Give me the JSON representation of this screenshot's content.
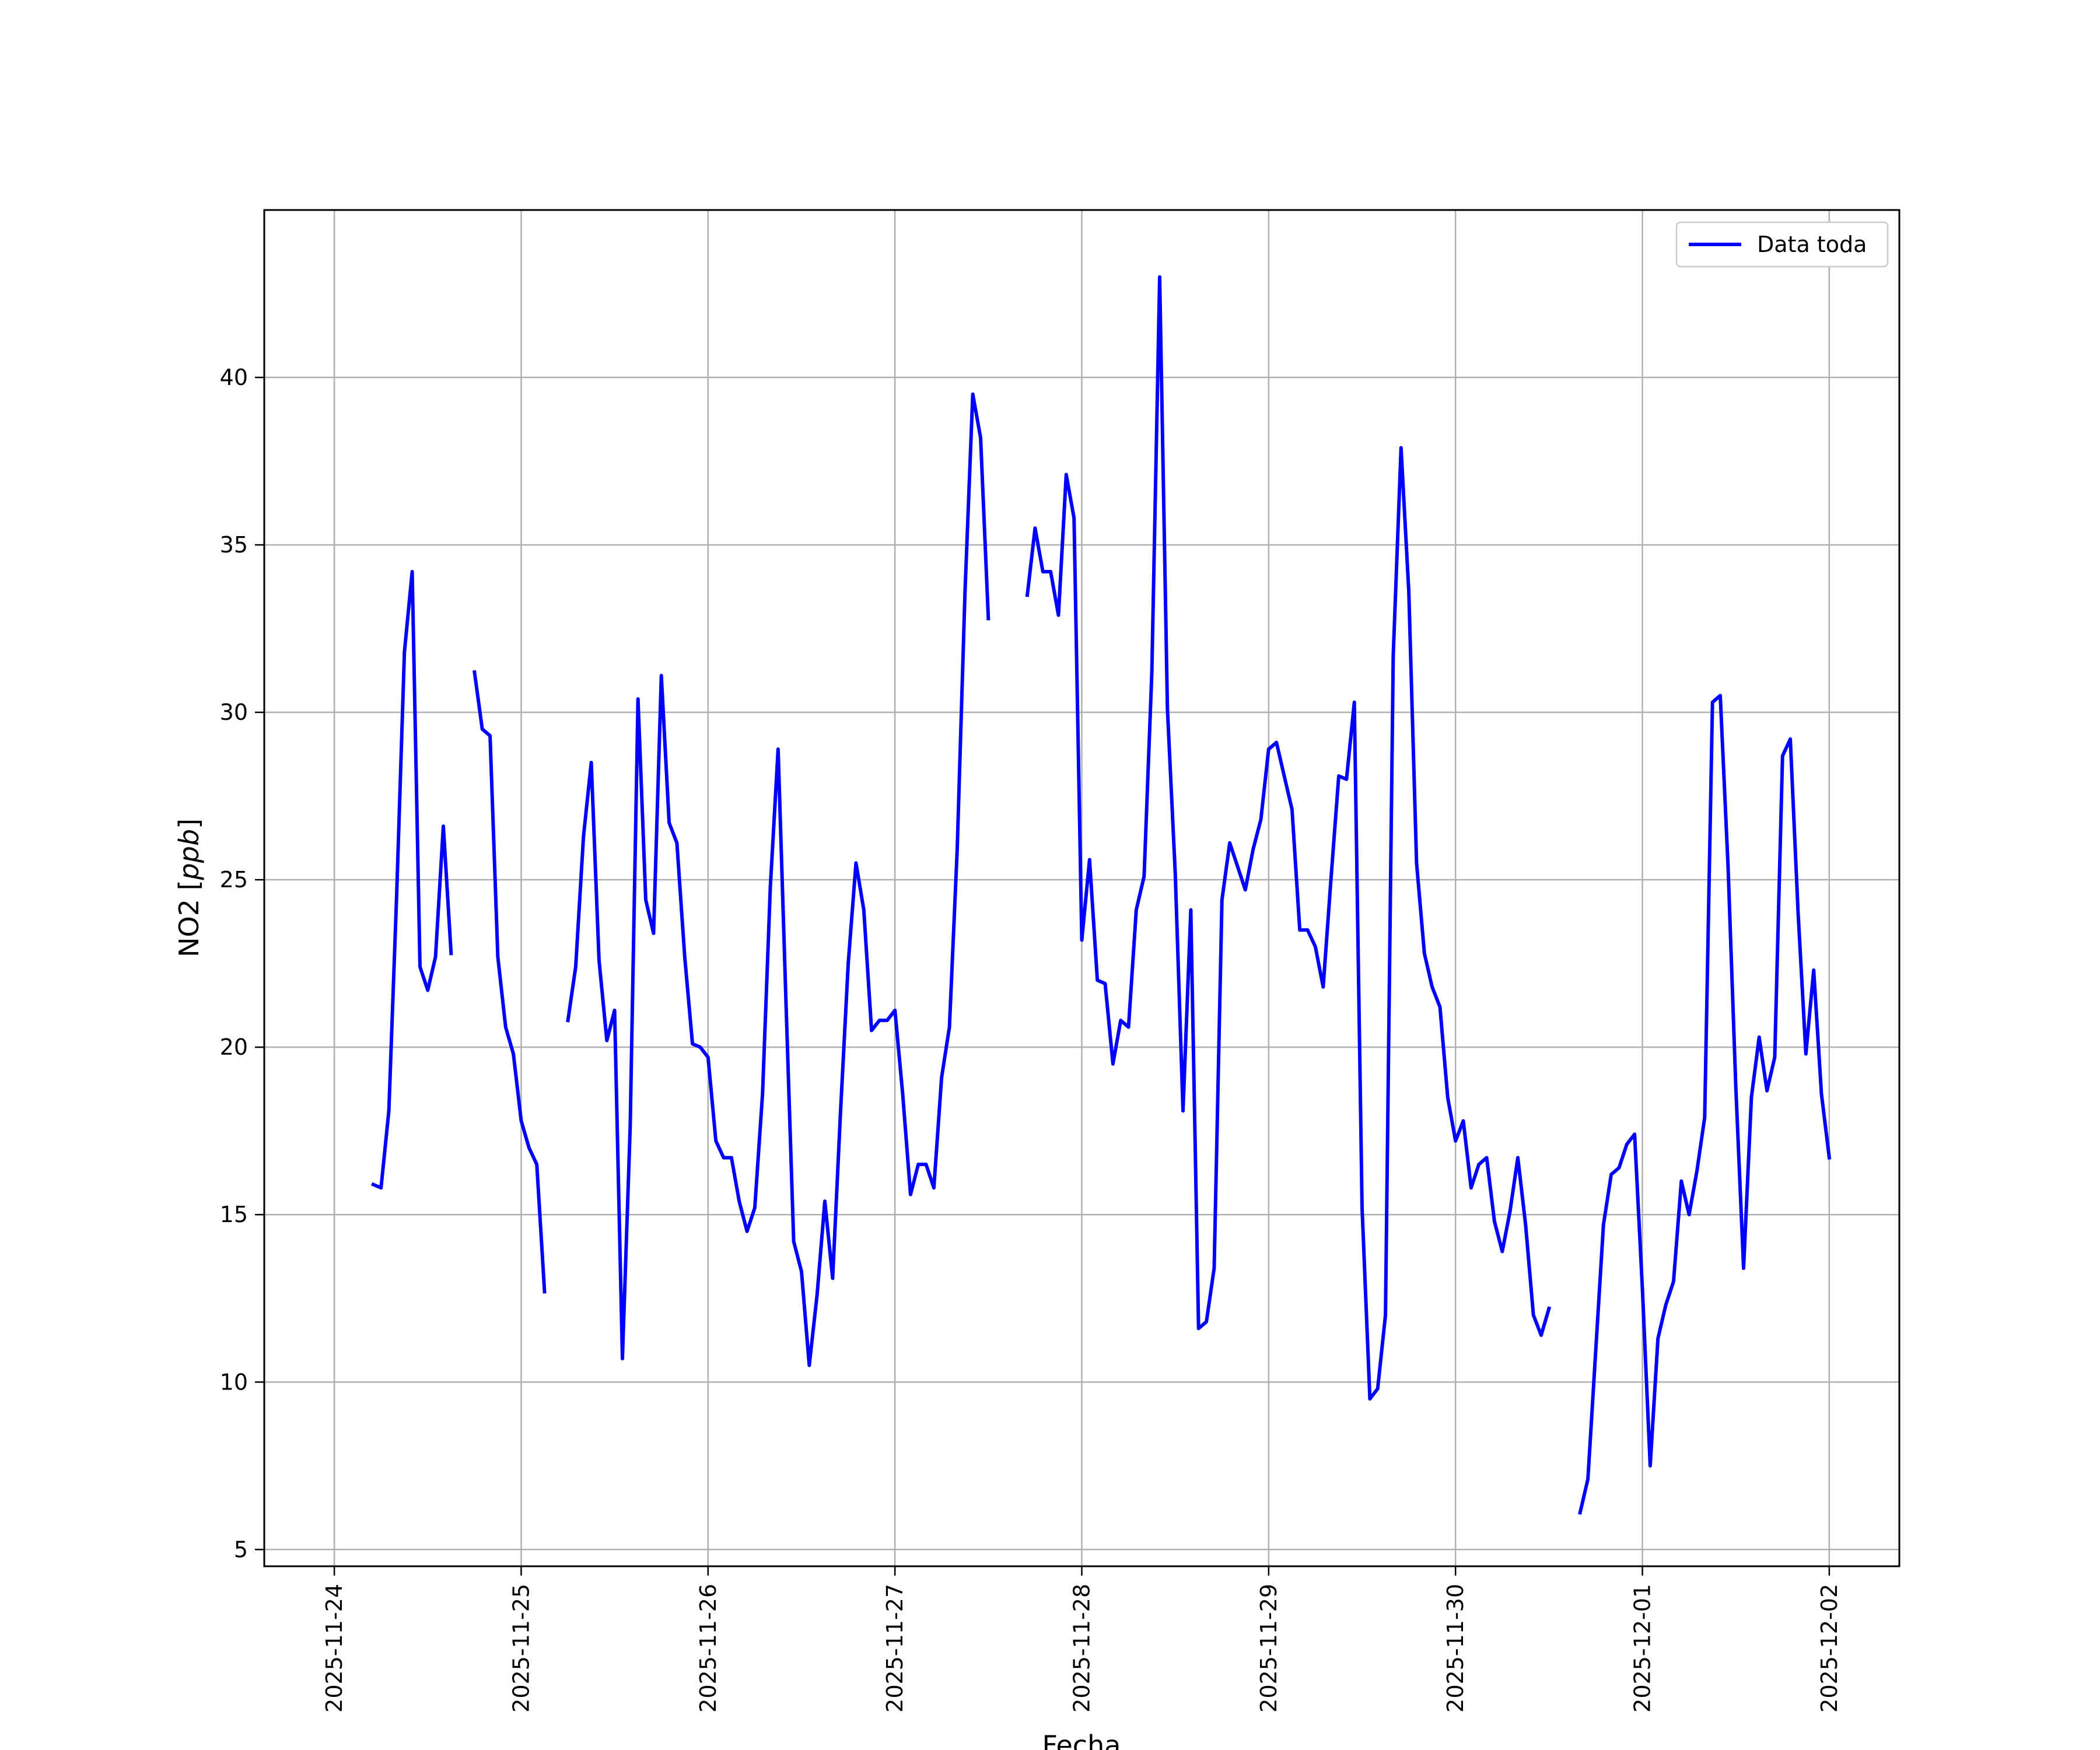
{
  "chart_data": {
    "type": "line",
    "title": "",
    "xlabel": "Fecha",
    "ylabel": "NO2 [ppb]",
    "ylabel_main": "NO2 [",
    "ylabel_unit": "ppb",
    "ylabel_close": "]",
    "x_axis": "datetime",
    "xlim": [
      "2025-11-23T15:00",
      "2025-12-02T09:00"
    ],
    "ylim": [
      4.5,
      45
    ],
    "x_ticks": [
      "2025-11-24",
      "2025-11-25",
      "2025-11-26",
      "2025-11-27",
      "2025-11-28",
      "2025-11-29",
      "2025-11-30",
      "2025-12-01",
      "2025-12-02"
    ],
    "y_ticks": [
      5,
      10,
      15,
      20,
      25,
      30,
      35,
      40
    ],
    "grid": true,
    "legend_position": "top-right",
    "colors": {
      "series": "#0000ff",
      "grid": "#b0b0b0",
      "axes": "#000000"
    },
    "series": [
      {
        "name": "Data toda",
        "segments": [
          [
            [
              "2025-11-24T05:00",
              15.9
            ],
            [
              "2025-11-24T06:00",
              15.8
            ],
            [
              "2025-11-24T07:00",
              18.1
            ],
            [
              "2025-11-24T08:00",
              24.5
            ],
            [
              "2025-11-24T09:00",
              31.8
            ],
            [
              "2025-11-24T10:00",
              34.2
            ],
            [
              "2025-11-24T11:00",
              22.4
            ],
            [
              "2025-11-24T12:00",
              21.7
            ],
            [
              "2025-11-24T13:00",
              22.7
            ],
            [
              "2025-11-24T14:00",
              26.6
            ],
            [
              "2025-11-24T15:00",
              22.8
            ]
          ],
          [
            [
              "2025-11-24T18:00",
              31.2
            ],
            [
              "2025-11-24T19:00",
              29.5
            ],
            [
              "2025-11-24T20:00",
              29.3
            ],
            [
              "2025-11-24T21:00",
              22.7
            ],
            [
              "2025-11-24T22:00",
              20.6
            ],
            [
              "2025-11-24T23:00",
              19.8
            ],
            [
              "2025-11-25T00:00",
              17.8
            ],
            [
              "2025-11-25T01:00",
              17.0
            ],
            [
              "2025-11-25T02:00",
              16.5
            ],
            [
              "2025-11-25T03:00",
              12.7
            ]
          ],
          [
            [
              "2025-11-25T06:00",
              20.8
            ],
            [
              "2025-11-25T07:00",
              22.4
            ],
            [
              "2025-11-25T08:00",
              26.3
            ],
            [
              "2025-11-25T09:00",
              28.5
            ],
            [
              "2025-11-25T10:00",
              22.6
            ],
            [
              "2025-11-25T11:00",
              20.2
            ],
            [
              "2025-11-25T12:00",
              21.1
            ],
            [
              "2025-11-25T13:00",
              10.7
            ],
            [
              "2025-11-25T14:00",
              17.6
            ],
            [
              "2025-11-25T15:00",
              30.4
            ],
            [
              "2025-11-25T16:00",
              24.4
            ],
            [
              "2025-11-25T17:00",
              23.4
            ],
            [
              "2025-11-25T18:00",
              31.1
            ],
            [
              "2025-11-25T19:00",
              26.7
            ],
            [
              "2025-11-25T20:00",
              26.1
            ],
            [
              "2025-11-25T21:00",
              22.7
            ],
            [
              "2025-11-25T22:00",
              20.1
            ],
            [
              "2025-11-25T23:00",
              20.0
            ],
            [
              "2025-11-26T00:00",
              19.7
            ],
            [
              "2025-11-26T01:00",
              17.2
            ],
            [
              "2025-11-26T02:00",
              16.7
            ],
            [
              "2025-11-26T03:00",
              16.7
            ],
            [
              "2025-11-26T04:00",
              15.4
            ],
            [
              "2025-11-26T05:00",
              14.5
            ],
            [
              "2025-11-26T06:00",
              15.2
            ],
            [
              "2025-11-26T07:00",
              18.6
            ],
            [
              "2025-11-26T08:00",
              24.8
            ],
            [
              "2025-11-26T09:00",
              28.9
            ],
            [
              "2025-11-26T10:00",
              21.4
            ],
            [
              "2025-11-26T11:00",
              14.2
            ],
            [
              "2025-11-26T12:00",
              13.3
            ],
            [
              "2025-11-26T13:00",
              10.5
            ],
            [
              "2025-11-26T14:00",
              12.6
            ],
            [
              "2025-11-26T15:00",
              15.4
            ],
            [
              "2025-11-26T16:00",
              13.1
            ],
            [
              "2025-11-26T17:00",
              18.0
            ],
            [
              "2025-11-26T18:00",
              22.5
            ],
            [
              "2025-11-26T19:00",
              25.5
            ],
            [
              "2025-11-26T20:00",
              24.1
            ],
            [
              "2025-11-26T21:00",
              20.5
            ],
            [
              "2025-11-26T22:00",
              20.8
            ],
            [
              "2025-11-26T23:00",
              20.8
            ],
            [
              "2025-11-27T00:00",
              21.1
            ],
            [
              "2025-11-27T01:00",
              18.6
            ],
            [
              "2025-11-27T02:00",
              15.6
            ],
            [
              "2025-11-27T03:00",
              16.5
            ],
            [
              "2025-11-27T04:00",
              16.5
            ],
            [
              "2025-11-27T05:00",
              15.8
            ],
            [
              "2025-11-27T06:00",
              19.1
            ],
            [
              "2025-11-27T07:00",
              20.6
            ],
            [
              "2025-11-27T08:00",
              25.9
            ],
            [
              "2025-11-27T09:00",
              33.6
            ],
            [
              "2025-11-27T10:00",
              39.5
            ],
            [
              "2025-11-27T11:00",
              38.2
            ],
            [
              "2025-11-27T12:00",
              32.8
            ]
          ],
          [
            [
              "2025-11-27T17:00",
              33.5
            ],
            [
              "2025-11-27T18:00",
              35.5
            ],
            [
              "2025-11-27T19:00",
              34.2
            ],
            [
              "2025-11-27T20:00",
              34.2
            ],
            [
              "2025-11-27T21:00",
              32.9
            ],
            [
              "2025-11-27T22:00",
              37.1
            ],
            [
              "2025-11-27T23:00",
              35.8
            ],
            [
              "2025-11-28T00:00",
              23.2
            ],
            [
              "2025-11-28T01:00",
              25.6
            ],
            [
              "2025-11-28T02:00",
              22.0
            ],
            [
              "2025-11-28T03:00",
              21.9
            ],
            [
              "2025-11-28T04:00",
              19.5
            ],
            [
              "2025-11-28T05:00",
              20.8
            ],
            [
              "2025-11-28T06:00",
              20.6
            ],
            [
              "2025-11-28T07:00",
              24.1
            ],
            [
              "2025-11-28T08:00",
              25.1
            ],
            [
              "2025-11-28T09:00",
              31.2
            ],
            [
              "2025-11-28T10:00",
              43.0
            ],
            [
              "2025-11-28T11:00",
              30.1
            ],
            [
              "2025-11-28T12:00",
              25.2
            ],
            [
              "2025-11-28T13:00",
              18.1
            ],
            [
              "2025-11-28T14:00",
              24.1
            ],
            [
              "2025-11-28T15:00",
              11.6
            ],
            [
              "2025-11-28T16:00",
              11.8
            ],
            [
              "2025-11-28T17:00",
              13.4
            ],
            [
              "2025-11-28T18:00",
              24.4
            ],
            [
              "2025-11-28T19:00",
              26.1
            ],
            [
              "2025-11-28T20:00",
              25.4
            ],
            [
              "2025-11-28T21:00",
              24.7
            ],
            [
              "2025-11-28T22:00",
              25.9
            ],
            [
              "2025-11-28T23:00",
              26.8
            ],
            [
              "2025-11-29T00:00",
              28.9
            ],
            [
              "2025-11-29T01:00",
              29.1
            ],
            [
              "2025-11-29T02:00",
              28.1
            ],
            [
              "2025-11-29T03:00",
              27.1
            ],
            [
              "2025-11-29T04:00",
              23.5
            ],
            [
              "2025-11-29T05:00",
              23.5
            ],
            [
              "2025-11-29T06:00",
              23.0
            ],
            [
              "2025-11-29T07:00",
              21.8
            ],
            [
              "2025-11-29T08:00",
              25.0
            ],
            [
              "2025-11-29T09:00",
              28.1
            ],
            [
              "2025-11-29T10:00",
              28.0
            ],
            [
              "2025-11-29T11:00",
              30.3
            ],
            [
              "2025-11-29T12:00",
              15.2
            ],
            [
              "2025-11-29T13:00",
              9.5
            ],
            [
              "2025-11-29T14:00",
              9.8
            ],
            [
              "2025-11-29T15:00",
              12.0
            ],
            [
              "2025-11-29T16:00",
              31.7
            ],
            [
              "2025-11-29T17:00",
              37.9
            ],
            [
              "2025-11-29T18:00",
              33.6
            ],
            [
              "2025-11-29T19:00",
              25.5
            ],
            [
              "2025-11-29T20:00",
              22.8
            ],
            [
              "2025-11-29T21:00",
              21.8
            ],
            [
              "2025-11-29T22:00",
              21.2
            ],
            [
              "2025-11-29T23:00",
              18.5
            ],
            [
              "2025-11-30T00:00",
              17.2
            ],
            [
              "2025-11-30T01:00",
              17.8
            ],
            [
              "2025-11-30T02:00",
              15.8
            ],
            [
              "2025-11-30T03:00",
              16.5
            ],
            [
              "2025-11-30T04:00",
              16.7
            ],
            [
              "2025-11-30T05:00",
              14.8
            ],
            [
              "2025-11-30T06:00",
              13.9
            ],
            [
              "2025-11-30T07:00",
              15.1
            ],
            [
              "2025-11-30T08:00",
              16.7
            ],
            [
              "2025-11-30T09:00",
              14.7
            ],
            [
              "2025-11-30T10:00",
              12.0
            ],
            [
              "2025-11-30T11:00",
              11.4
            ],
            [
              "2025-11-30T12:00",
              12.2
            ]
          ],
          [
            [
              "2025-11-30T16:00",
              6.1
            ],
            [
              "2025-11-30T17:00",
              7.1
            ],
            [
              "2025-11-30T18:00",
              10.9
            ],
            [
              "2025-11-30T19:00",
              14.7
            ],
            [
              "2025-11-30T20:00",
              16.2
            ],
            [
              "2025-11-30T21:00",
              16.4
            ],
            [
              "2025-11-30T22:00",
              17.1
            ],
            [
              "2025-11-30T23:00",
              17.4
            ],
            [
              "2025-12-01T00:00",
              12.8
            ],
            [
              "2025-12-01T01:00",
              7.5
            ],
            [
              "2025-12-01T02:00",
              11.3
            ],
            [
              "2025-12-01T03:00",
              12.3
            ],
            [
              "2025-12-01T04:00",
              13.0
            ],
            [
              "2025-12-01T05:00",
              16.0
            ],
            [
              "2025-12-01T06:00",
              15.0
            ],
            [
              "2025-12-01T07:00",
              16.3
            ],
            [
              "2025-12-01T08:00",
              17.9
            ],
            [
              "2025-12-01T09:00",
              30.3
            ],
            [
              "2025-12-01T10:00",
              30.5
            ],
            [
              "2025-12-01T11:00",
              25.4
            ],
            [
              "2025-12-01T12:00",
              18.8
            ],
            [
              "2025-12-01T13:00",
              13.4
            ],
            [
              "2025-12-01T14:00",
              18.5
            ],
            [
              "2025-12-01T15:00",
              20.3
            ],
            [
              "2025-12-01T16:00",
              18.7
            ],
            [
              "2025-12-01T17:00",
              19.7
            ],
            [
              "2025-12-01T18:00",
              28.7
            ],
            [
              "2025-12-01T19:00",
              29.2
            ],
            [
              "2025-12-01T20:00",
              24.0
            ],
            [
              "2025-12-01T21:00",
              19.8
            ],
            [
              "2025-12-01T22:00",
              22.3
            ],
            [
              "2025-12-01T23:00",
              18.6
            ],
            [
              "2025-12-02T00:00",
              16.7
            ]
          ]
        ]
      }
    ]
  }
}
